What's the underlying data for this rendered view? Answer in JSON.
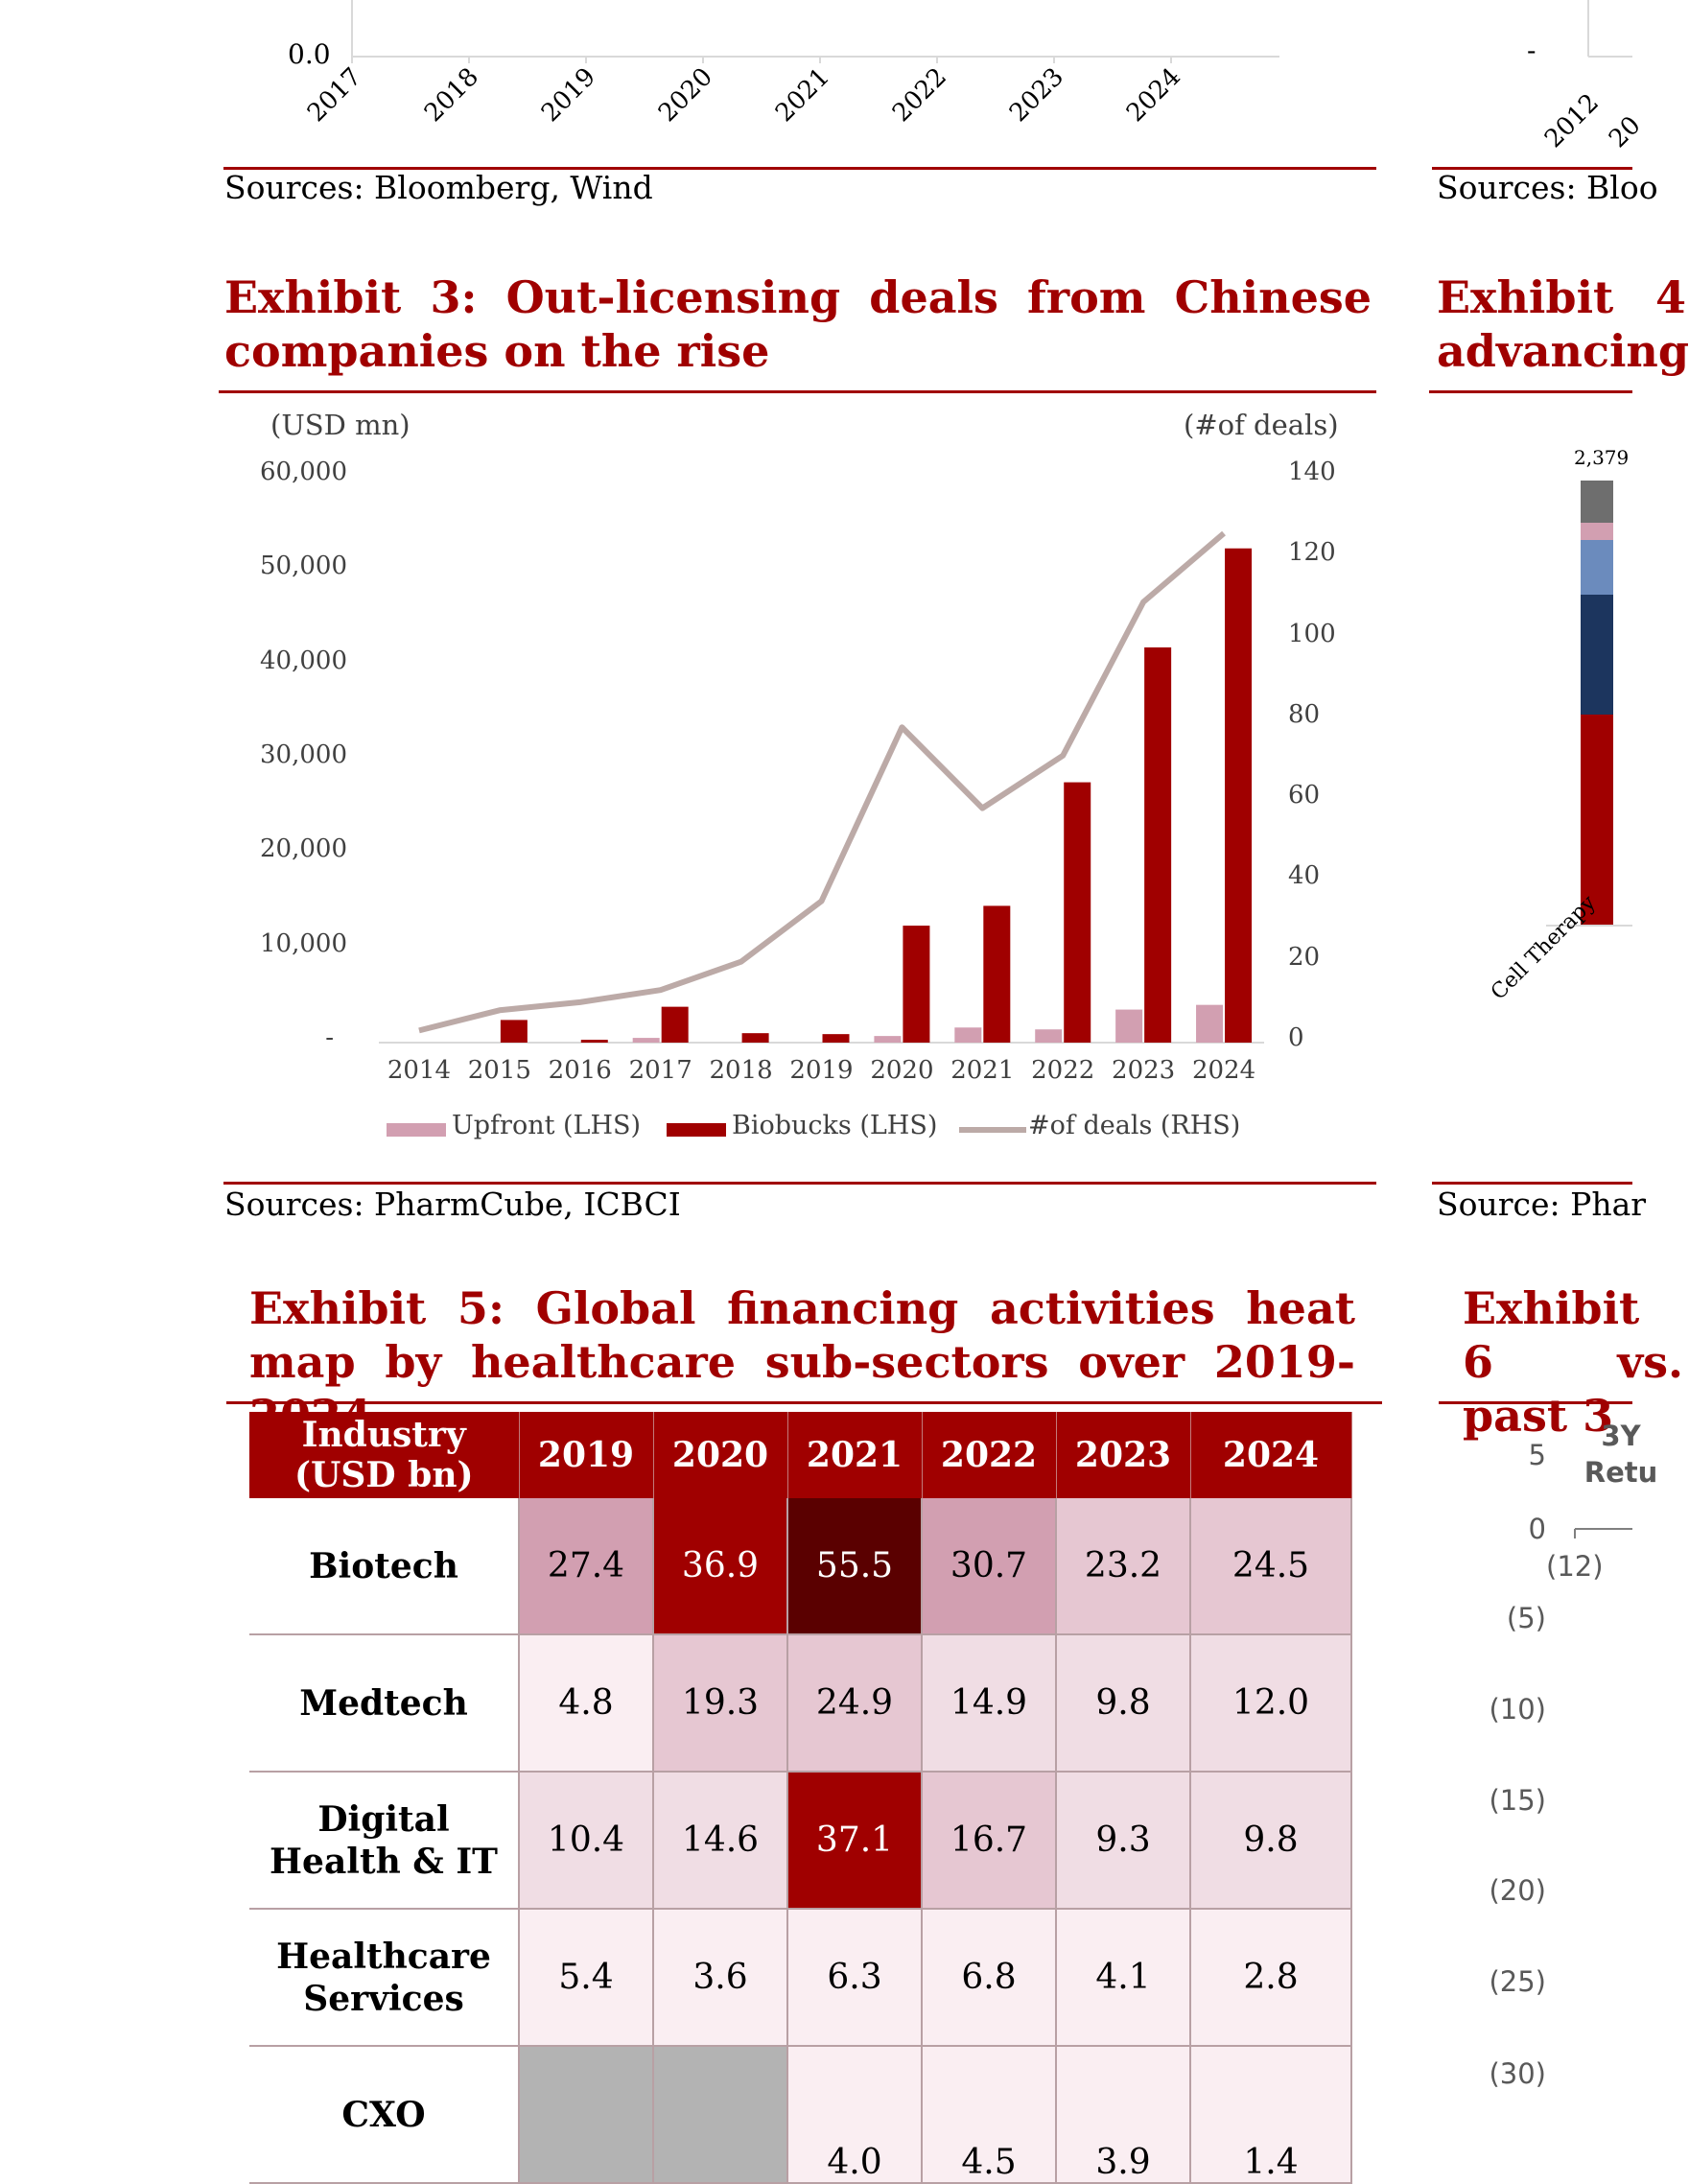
{
  "top_chart_left": {
    "y_tick": "0.0",
    "x_labels": [
      "2017",
      "2018",
      "2019",
      "2020",
      "2021",
      "2022",
      "2023",
      "2024"
    ],
    "source": "Sources: Bloomberg, Wind"
  },
  "top_chart_right": {
    "y_tick": "-",
    "x_labels": [
      "2012",
      "20"
    ],
    "source": "Sources: Bloo"
  },
  "exhibit3": {
    "title": "Exhibit 3: Out-licensing deals from Chinese companies on the rise",
    "left_axis_unit": "(USD mn)",
    "right_axis_unit": "(#of deals)",
    "source": "Sources: PharmCube, ICBCI"
  },
  "exhibit4": {
    "title": "Exhibit 4 advancing",
    "bar_value_label": "2,379",
    "category_label": "Cell Therapy",
    "source": "Source: Phar"
  },
  "exhibit5": {
    "title": "Exhibit 5: Global financing activities heat map by healthcare sub-sectors over 2019-2024",
    "header_line1": "Industry",
    "header_line2": "(USD bn)",
    "years": [
      "2019",
      "2020",
      "2021",
      "2022",
      "2023",
      "2024"
    ],
    "rows": [
      {
        "label1": "Biotech",
        "label2": "",
        "values": [
          "27.4",
          "36.9",
          "55.5",
          "30.7",
          "23.2",
          "24.5"
        ]
      },
      {
        "label1": "Medtech",
        "label2": "",
        "values": [
          "4.8",
          "19.3",
          "24.9",
          "14.9",
          "9.8",
          "12.0"
        ]
      },
      {
        "label1": "Digital",
        "label2": "Health & IT",
        "values": [
          "10.4",
          "14.6",
          "37.1",
          "16.7",
          "9.3",
          "9.8"
        ]
      },
      {
        "label1": "Healthcare",
        "label2": "Services",
        "values": [
          "5.4",
          "3.6",
          "6.3",
          "6.8",
          "4.1",
          "2.8"
        ]
      },
      {
        "label1": "CXO",
        "label2": "",
        "values": [
          "",
          "",
          "4.0",
          "4.5",
          "3.9",
          "1.4"
        ]
      }
    ],
    "cell_colors": [
      [
        "#d29fb1",
        "#a00000",
        "#5a0000",
        "#d29fb1",
        "#e6c7d2",
        "#e6c7d2"
      ],
      [
        "#faeef2",
        "#e6c7d2",
        "#e6c7d2",
        "#f0dde4",
        "#f0dde4",
        "#f0dde4"
      ],
      [
        "#f0dde4",
        "#f0dde4",
        "#a00000",
        "#e6c7d2",
        "#f0dde4",
        "#f0dde4"
      ],
      [
        "#faeef2",
        "#faeef2",
        "#faeef2",
        "#faeef2",
        "#faeef2",
        "#faeef2"
      ],
      [
        "#b3b3b3",
        "#b3b3b3",
        "#faeef2",
        "#faeef2",
        "#faeef2",
        "#faeef2"
      ]
    ]
  },
  "exhibit6": {
    "title": "Exhibit 6 vs. past 3",
    "y_ticks": [
      "5",
      "0",
      "(5)",
      "(10)",
      "(15)",
      "(20)",
      "(25)",
      "(30)"
    ],
    "col_header": "3Y Retu",
    "first_value": "(12)"
  },
  "chart_data": [
    {
      "type": "bar",
      "title": "Exhibit 3: Out-licensing deals from Chinese companies on the rise",
      "categories": [
        "2014",
        "2015",
        "2016",
        "2017",
        "2018",
        "2019",
        "2020",
        "2021",
        "2022",
        "2023",
        "2024"
      ],
      "series": [
        {
          "name": "Upfront (LHS)",
          "type": "bar",
          "axis": "left",
          "color": "#d29fb1",
          "values": [
            0,
            0,
            0,
            500,
            0,
            0,
            700,
            1600,
            1400,
            3500,
            4000
          ]
        },
        {
          "name": "Biobucks (LHS)",
          "type": "bar",
          "axis": "left",
          "color": "#a00000",
          "values": [
            0,
            2400,
            300,
            3800,
            1000,
            900,
            12400,
            14500,
            27600,
            41900,
            52400
          ]
        },
        {
          "name": "#of deals (RHS)",
          "type": "line",
          "axis": "right",
          "color": "#bcaaa7",
          "values": [
            3,
            8,
            10,
            13,
            20,
            35,
            78,
            58,
            71,
            109,
            126
          ]
        }
      ],
      "left_axis": {
        "unit": "(USD mn)",
        "ylim": [
          0,
          60000
        ],
        "ticks": [
          "-",
          "10,000",
          "20,000",
          "30,000",
          "40,000",
          "50,000",
          "60,000"
        ]
      },
      "right_axis": {
        "unit": "(#of deals)",
        "ylim": [
          0,
          140
        ],
        "ticks": [
          "0",
          "20",
          "40",
          "60",
          "80",
          "100",
          "120",
          "140"
        ]
      },
      "legend": [
        "Upfront (LHS)",
        "Biobucks (LHS)",
        "#of deals (RHS)"
      ],
      "legend_position": "bottom",
      "grid": false
    },
    {
      "type": "heatmap",
      "title": "Exhibit 5: Global financing activities heat map by healthcare sub-sectors over 2019-2024",
      "x": [
        "2019",
        "2020",
        "2021",
        "2022",
        "2023",
        "2024"
      ],
      "y": [
        "Biotech",
        "Medtech",
        "Digital Health & IT",
        "Healthcare Services",
        "CXO"
      ],
      "values": [
        [
          27.4,
          36.9,
          55.5,
          30.7,
          23.2,
          24.5
        ],
        [
          4.8,
          19.3,
          24.9,
          14.9,
          9.8,
          12.0
        ],
        [
          10.4,
          14.6,
          37.1,
          16.7,
          9.3,
          9.8
        ],
        [
          5.4,
          3.6,
          6.3,
          6.8,
          4.1,
          2.8
        ],
        [
          null,
          null,
          4.0,
          4.5,
          3.9,
          1.4
        ]
      ]
    }
  ],
  "colors": {
    "accent": "#a00000",
    "upfront": "#d29fb1",
    "line": "#bcaaa7",
    "ex4_segments": [
      "#a00000",
      "#1c355e",
      "#6b8bbd",
      "#d29fb1",
      "#6e6e6e"
    ]
  }
}
